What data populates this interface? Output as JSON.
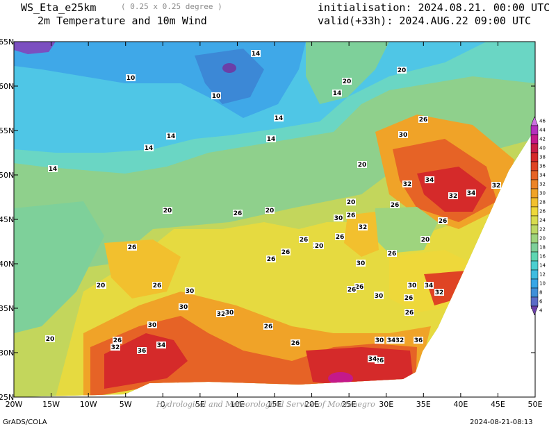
{
  "header": {
    "model": "WS_Eta_e25km",
    "resolution": "( 0.25 x 0.25 degree )",
    "product": "2m Temperature and 10m Wind",
    "init": "initialisation: 2024.08.21. 00:00 UTC",
    "valid": "valid(+33h): 2024.AUG.22 09:00 UTC"
  },
  "footer": {
    "left": "GrADS/COLA",
    "right": "2024-08-21-08:13"
  },
  "watermark": "Hydrological and Meteorological Service of Montenegro",
  "axes": {
    "lon_ticks": [
      "20W",
      "15W",
      "10W",
      "5W",
      "0",
      "5E",
      "10E",
      "15E",
      "20E",
      "25E",
      "30E",
      "35E",
      "40E",
      "45E",
      "50E"
    ],
    "lat_ticks": [
      "25N",
      "30N",
      "35N",
      "40N",
      "45N",
      "50N",
      "55N",
      "60N",
      "65N"
    ]
  },
  "colorbar": {
    "levels": [
      "4",
      "6",
      "8",
      "10",
      "12",
      "14",
      "16",
      "18",
      "20",
      "22",
      "24",
      "26",
      "28",
      "30",
      "32",
      "34",
      "36",
      "38",
      "40",
      "42",
      "44",
      "46"
    ],
    "colors": [
      "#6a3fa8",
      "#5b6cc7",
      "#3f8fd8",
      "#37a6e6",
      "#3fbce0",
      "#4ccfd0",
      "#5fd6b2",
      "#7ed09a",
      "#9ed47e",
      "#bcd865",
      "#d8dc4e",
      "#eed83a",
      "#f2c02e",
      "#f0a328",
      "#ec8427",
      "#e66326",
      "#df4424",
      "#d52a2a",
      "#c81e46",
      "#c4198a",
      "#b42fbd",
      "#cc70e0"
    ]
  },
  "contour_labels": [
    "14",
    "10",
    "10",
    "14",
    "14",
    "14",
    "14",
    "20",
    "20",
    "14",
    "14",
    "20",
    "26",
    "30",
    "32",
    "34",
    "32",
    "32",
    "34",
    "26",
    "26",
    "26",
    "30",
    "32",
    "20",
    "20",
    "30",
    "26",
    "20",
    "26",
    "26",
    "20",
    "30",
    "26",
    "32",
    "34",
    "30",
    "34",
    "30",
    "26",
    "20",
    "26",
    "32",
    "30",
    "26",
    "26",
    "26",
    "30",
    "30",
    "26",
    "32",
    "34",
    "36",
    "34",
    "36",
    "32",
    "34",
    "20",
    "20",
    "20",
    "26",
    "26",
    "20",
    "26",
    "26",
    "26",
    "30",
    "26",
    "20"
  ]
}
